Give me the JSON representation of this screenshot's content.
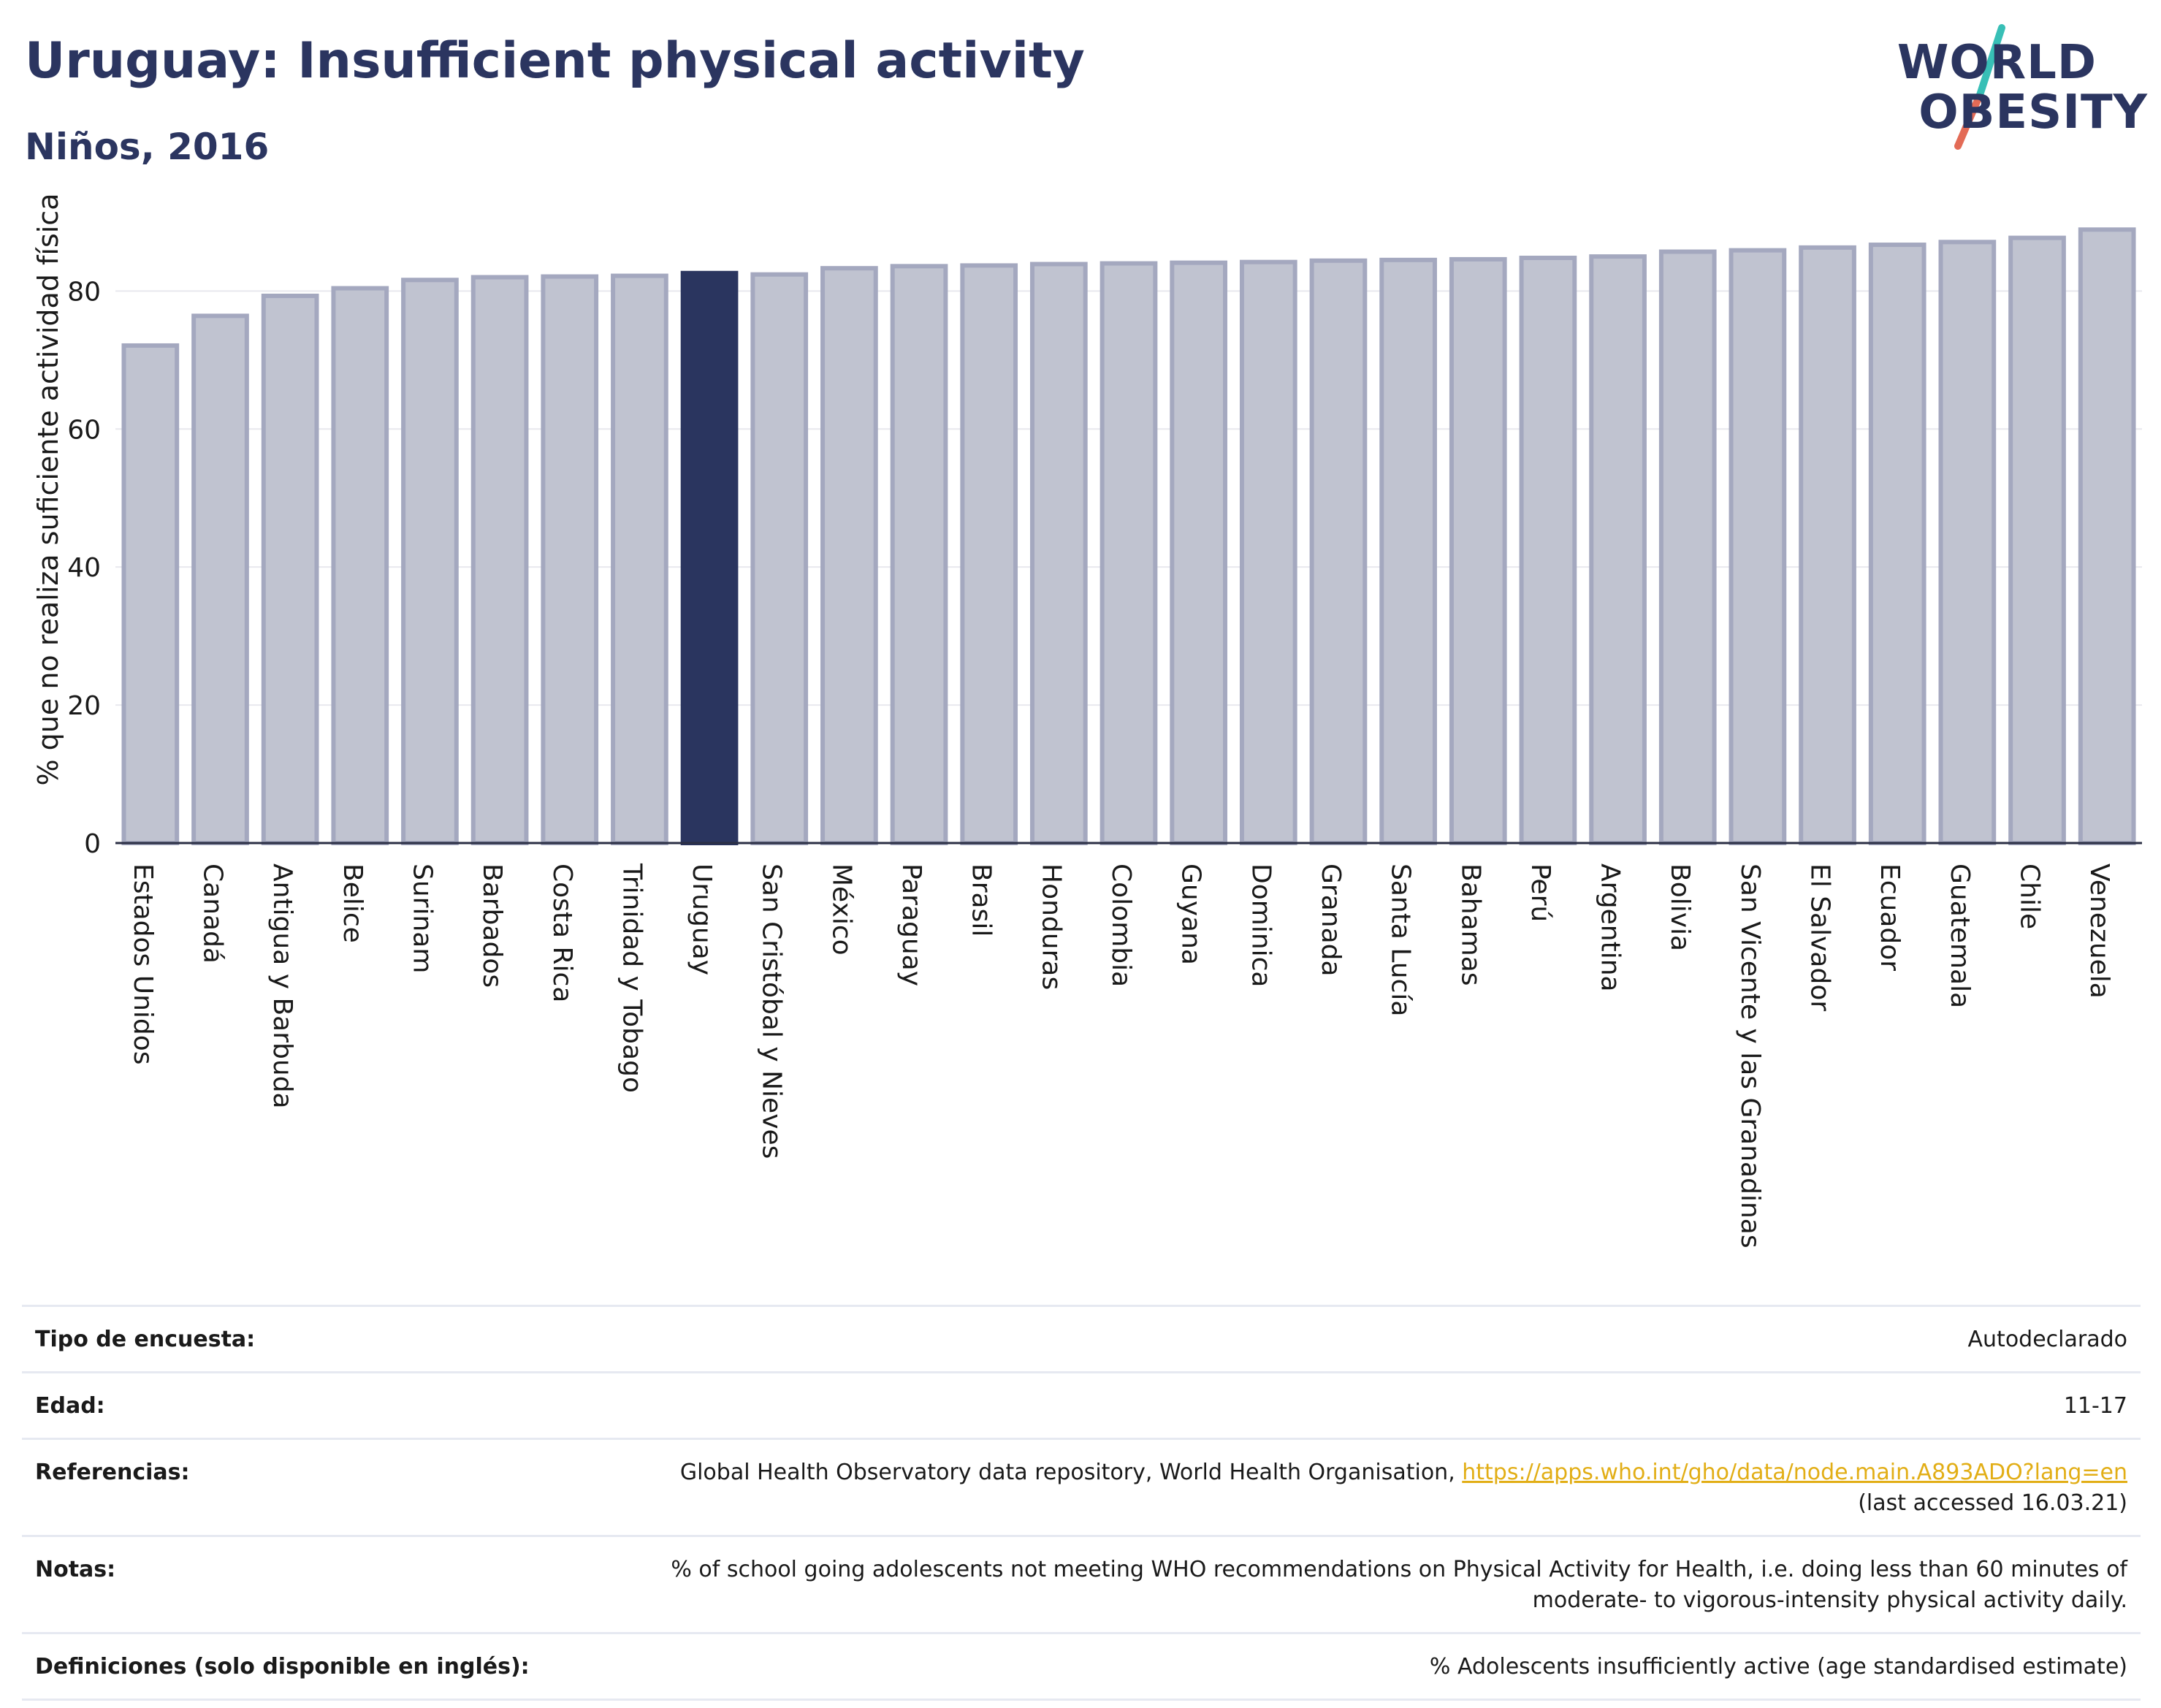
{
  "header": {
    "title": "Uruguay: Insufficient physical activity",
    "subtitle": "Niños, 2016"
  },
  "logo": {
    "line1": "WORLD",
    "line2": "OBESITY",
    "colors": [
      "#38bfb6",
      "#e36b56"
    ]
  },
  "chart_data": {
    "type": "bar",
    "ylabel": "% que no realiza suficiente actividad física",
    "ylim": [
      0,
      92
    ],
    "yticks": [
      0,
      20,
      40,
      60,
      80
    ],
    "grid": true,
    "categories": [
      "Estados Unidos",
      "Canadá",
      "Antigua y Barbuda",
      "Belice",
      "Surinam",
      "Barbados",
      "Costa Rica",
      "Trinidad y Tobago",
      "Uruguay",
      "San Cristóbal y Nieves",
      "México",
      "Paraguay",
      "Brasil",
      "Honduras",
      "Colombia",
      "Guyana",
      "Dominica",
      "Granada",
      "Santa Lucía",
      "Bahamas",
      "Perú",
      "Argentina",
      "Bolivia",
      "San Vicente y las Granadinas",
      "El Salvador",
      "Ecuador",
      "Guatemala",
      "Chile",
      "Venezuela"
    ],
    "values": [
      72.1,
      76.4,
      79.3,
      80.4,
      81.6,
      82.0,
      82.1,
      82.2,
      82.6,
      82.4,
      83.3,
      83.6,
      83.7,
      83.9,
      84.0,
      84.1,
      84.2,
      84.4,
      84.5,
      84.6,
      84.8,
      85.0,
      85.7,
      85.9,
      86.3,
      86.7,
      87.1,
      87.7,
      88.9
    ],
    "highlight": "Uruguay",
    "colors": {
      "bar": "#c0c3d0",
      "bar_border": "#a4a8bf",
      "highlight": "#2a355f"
    }
  },
  "info": {
    "rows": [
      {
        "label": "Tipo de encuesta:",
        "value": "Autodeclarado"
      },
      {
        "label": "Edad:",
        "value": "11-17"
      },
      {
        "label": "Referencias:",
        "value": "Global Health Observatory data repository, World Health Organisation, ",
        "link": "https://apps.who.int/gho/data/node.main.A893ADO?lang=en",
        "value2": "(last accessed 16.03.21)"
      },
      {
        "label": "Notas:",
        "value": "% of school going adolescents not meeting WHO recommendations on Physical Activity for Health, i.e. doing less than 60 minutes of moderate- to vigorous-intensity physical activity daily."
      },
      {
        "label": "Definiciones (solo disponible en inglés):",
        "value": "% Adolescents insufficiently active (age standardised estimate)"
      }
    ]
  }
}
